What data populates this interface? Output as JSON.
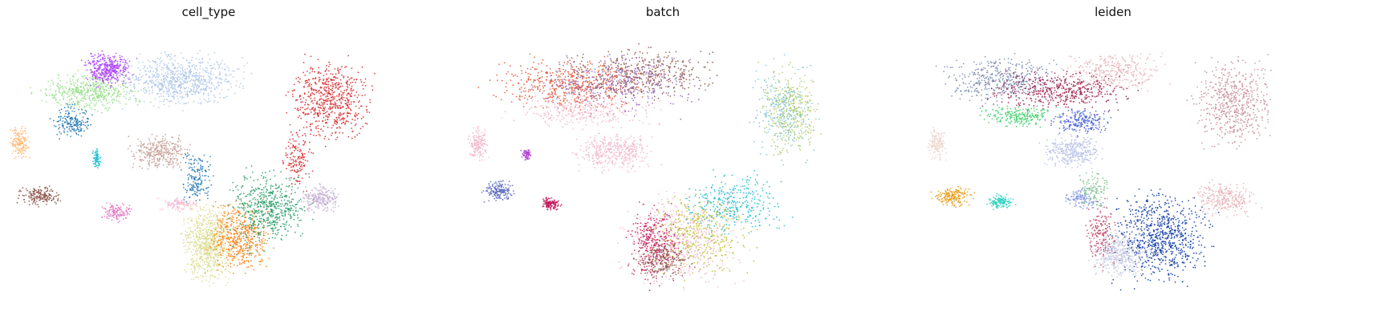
{
  "chart_data": [
    {
      "type": "scatter",
      "title": "cell_type",
      "xlabel": "",
      "ylabel": "",
      "axes_visible": false,
      "grid": false,
      "legend": "none",
      "clusters": [
        {
          "cx": 0.2,
          "cy": 0.78,
          "rx": 0.1,
          "ry": 0.06,
          "color": "#98df8a",
          "n": 500
        },
        {
          "cx": 0.25,
          "cy": 0.86,
          "rx": 0.05,
          "ry": 0.05,
          "color": "#aa40fc",
          "n": 380
        },
        {
          "cx": 0.43,
          "cy": 0.82,
          "rx": 0.12,
          "ry": 0.08,
          "color": "#aec7e8",
          "n": 780
        },
        {
          "cx": 0.16,
          "cy": 0.66,
          "rx": 0.04,
          "ry": 0.05,
          "color": "#1f77b4",
          "n": 180
        },
        {
          "cx": 0.8,
          "cy": 0.75,
          "rx": 0.08,
          "ry": 0.12,
          "color": "#d62728",
          "n": 620
        },
        {
          "cx": 0.72,
          "cy": 0.52,
          "rx": 0.03,
          "ry": 0.1,
          "color": "#d62728",
          "n": 140
        },
        {
          "cx": 0.03,
          "cy": 0.58,
          "rx": 0.02,
          "ry": 0.05,
          "color": "#ffbb78",
          "n": 160
        },
        {
          "cx": 0.22,
          "cy": 0.52,
          "rx": 0.01,
          "ry": 0.03,
          "color": "#17becf",
          "n": 70
        },
        {
          "cx": 0.08,
          "cy": 0.38,
          "rx": 0.04,
          "ry": 0.03,
          "color": "#8c564b",
          "n": 180
        },
        {
          "cx": 0.27,
          "cy": 0.32,
          "rx": 0.03,
          "ry": 0.03,
          "color": "#e377c2",
          "n": 130
        },
        {
          "cx": 0.38,
          "cy": 0.55,
          "rx": 0.06,
          "ry": 0.05,
          "color": "#c49c94",
          "n": 320
        },
        {
          "cx": 0.47,
          "cy": 0.45,
          "rx": 0.03,
          "ry": 0.08,
          "color": "#1f77b4",
          "n": 170
        },
        {
          "cx": 0.43,
          "cy": 0.35,
          "rx": 0.04,
          "ry": 0.02,
          "color": "#f7b6d2",
          "n": 100
        },
        {
          "cx": 0.5,
          "cy": 0.2,
          "rx": 0.05,
          "ry": 0.12,
          "color": "#dbdb8d",
          "n": 720
        },
        {
          "cx": 0.58,
          "cy": 0.22,
          "rx": 0.06,
          "ry": 0.1,
          "color": "#ff7f0e",
          "n": 500
        },
        {
          "cx": 0.65,
          "cy": 0.33,
          "rx": 0.08,
          "ry": 0.12,
          "color": "#279e68",
          "n": 560
        },
        {
          "cx": 0.78,
          "cy": 0.37,
          "rx": 0.04,
          "ry": 0.04,
          "color": "#c5b0d5",
          "n": 240
        }
      ]
    },
    {
      "type": "scatter",
      "title": "batch",
      "xlabel": "",
      "ylabel": "",
      "axes_visible": false,
      "grid": false,
      "legend": "none",
      "clusters": [
        {
          "cx": 0.28,
          "cy": 0.8,
          "rx": 0.16,
          "ry": 0.08,
          "color": "#e7522d",
          "n": 520
        },
        {
          "cx": 0.45,
          "cy": 0.84,
          "rx": 0.15,
          "ry": 0.08,
          "color": "#8c564b",
          "n": 420
        },
        {
          "cx": 0.38,
          "cy": 0.8,
          "rx": 0.18,
          "ry": 0.09,
          "color": "#9467bd",
          "n": 380
        },
        {
          "cx": 0.3,
          "cy": 0.7,
          "rx": 0.14,
          "ry": 0.05,
          "color": "#f2b5c8",
          "n": 300
        },
        {
          "cx": 0.82,
          "cy": 0.7,
          "rx": 0.06,
          "ry": 0.14,
          "color": "#b5cf6b",
          "n": 380
        },
        {
          "cx": 0.8,
          "cy": 0.7,
          "rx": 0.06,
          "ry": 0.14,
          "color": "#7ec3d6",
          "n": 260
        },
        {
          "cx": 0.04,
          "cy": 0.58,
          "rx": 0.02,
          "ry": 0.05,
          "color": "#f2b5c8",
          "n": 150
        },
        {
          "cx": 0.09,
          "cy": 0.4,
          "rx": 0.03,
          "ry": 0.03,
          "color": "#5c6bc0",
          "n": 170
        },
        {
          "cx": 0.22,
          "cy": 0.35,
          "rx": 0.02,
          "ry": 0.02,
          "color": "#c2185b",
          "n": 120
        },
        {
          "cx": 0.16,
          "cy": 0.54,
          "rx": 0.01,
          "ry": 0.02,
          "color": "#b040d0",
          "n": 60
        },
        {
          "cx": 0.38,
          "cy": 0.55,
          "rx": 0.08,
          "ry": 0.06,
          "color": "#f2b5c8",
          "n": 380
        },
        {
          "cx": 0.55,
          "cy": 0.22,
          "rx": 0.12,
          "ry": 0.15,
          "color": "#f2b5c8",
          "n": 520
        },
        {
          "cx": 0.48,
          "cy": 0.2,
          "rx": 0.05,
          "ry": 0.12,
          "color": "#c2185b",
          "n": 320
        },
        {
          "cx": 0.6,
          "cy": 0.24,
          "rx": 0.1,
          "ry": 0.12,
          "color": "#bcbd22",
          "n": 320
        },
        {
          "cx": 0.68,
          "cy": 0.35,
          "rx": 0.1,
          "ry": 0.1,
          "color": "#17becf",
          "n": 320
        },
        {
          "cx": 0.5,
          "cy": 0.14,
          "rx": 0.06,
          "ry": 0.06,
          "color": "#8c564b",
          "n": 220
        }
      ]
    },
    {
      "type": "scatter",
      "title": "leiden",
      "xlabel": "",
      "ylabel": "",
      "axes_visible": false,
      "grid": false,
      "legend": "none",
      "clusters": [
        {
          "cx": 0.22,
          "cy": 0.82,
          "rx": 0.12,
          "ry": 0.07,
          "color": "#7b8bb0",
          "n": 440
        },
        {
          "cx": 0.37,
          "cy": 0.78,
          "rx": 0.14,
          "ry": 0.06,
          "color": "#9c1b4a",
          "n": 460
        },
        {
          "cx": 0.26,
          "cy": 0.68,
          "rx": 0.08,
          "ry": 0.03,
          "color": "#3fcf6b",
          "n": 220
        },
        {
          "cx": 0.42,
          "cy": 0.66,
          "rx": 0.06,
          "ry": 0.04,
          "color": "#4a63d8",
          "n": 220
        },
        {
          "cx": 0.5,
          "cy": 0.85,
          "rx": 0.1,
          "ry": 0.06,
          "color": "#e6b0b5",
          "n": 320
        },
        {
          "cx": 0.8,
          "cy": 0.73,
          "rx": 0.08,
          "ry": 0.14,
          "color": "#c58d96",
          "n": 560
        },
        {
          "cx": 0.06,
          "cy": 0.58,
          "rx": 0.02,
          "ry": 0.05,
          "color": "#ead2c9",
          "n": 140
        },
        {
          "cx": 0.1,
          "cy": 0.38,
          "rx": 0.04,
          "ry": 0.03,
          "color": "#e6990f",
          "n": 170
        },
        {
          "cx": 0.22,
          "cy": 0.36,
          "rx": 0.03,
          "ry": 0.02,
          "color": "#2ed3c0",
          "n": 140
        },
        {
          "cx": 0.4,
          "cy": 0.55,
          "rx": 0.06,
          "ry": 0.05,
          "color": "#b7c0e6",
          "n": 320
        },
        {
          "cx": 0.42,
          "cy": 0.37,
          "rx": 0.04,
          "ry": 0.03,
          "color": "#8094e0",
          "n": 120
        },
        {
          "cx": 0.62,
          "cy": 0.22,
          "rx": 0.1,
          "ry": 0.14,
          "color": "#0d3aa6",
          "n": 780
        },
        {
          "cx": 0.52,
          "cy": 0.16,
          "rx": 0.06,
          "ry": 0.07,
          "color": "#c7c9e0",
          "n": 420
        },
        {
          "cx": 0.47,
          "cy": 0.24,
          "rx": 0.03,
          "ry": 0.1,
          "color": "#c24a6b",
          "n": 170
        },
        {
          "cx": 0.78,
          "cy": 0.37,
          "rx": 0.06,
          "ry": 0.05,
          "color": "#e6b0b5",
          "n": 280
        },
        {
          "cx": 0.45,
          "cy": 0.4,
          "rx": 0.03,
          "ry": 0.06,
          "color": "#7fc48a",
          "n": 110
        }
      ]
    }
  ]
}
